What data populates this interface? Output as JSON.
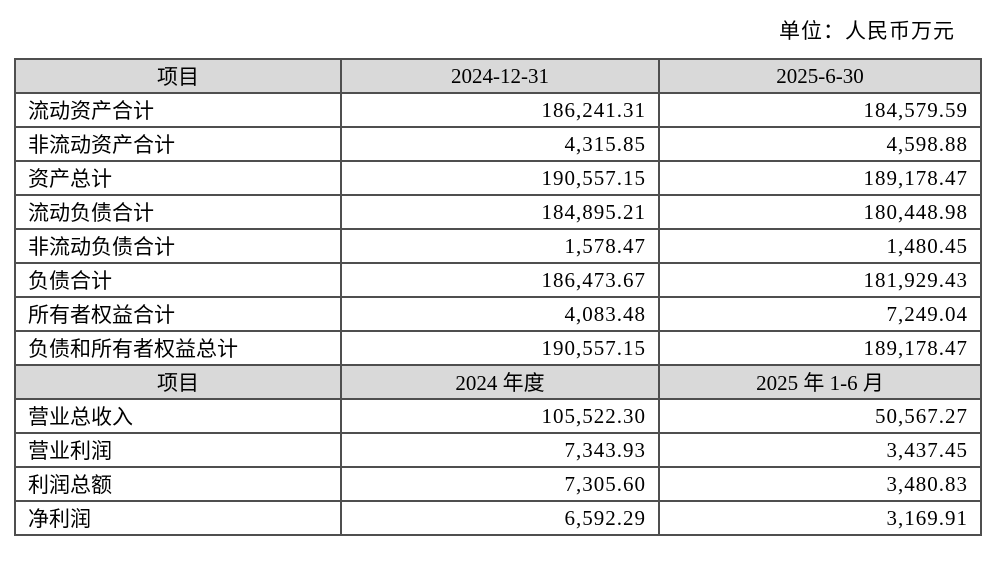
{
  "unit_note": "单位：人民币万元",
  "colors": {
    "header_bg": "#d9d9d9",
    "border": "#4f4f4f",
    "text": "#000000"
  },
  "balance_sheet": {
    "headers": [
      "项目",
      "2024-12-31",
      "2025-6-30"
    ],
    "rows": [
      {
        "item": "流动资产合计",
        "values": [
          "186,241.31",
          "184,579.59"
        ]
      },
      {
        "item": "非流动资产合计",
        "values": [
          "4,315.85",
          "4,598.88"
        ]
      },
      {
        "item": "资产总计",
        "values": [
          "190,557.15",
          "189,178.47"
        ]
      },
      {
        "item": "流动负债合计",
        "values": [
          "184,895.21",
          "180,448.98"
        ]
      },
      {
        "item": "非流动负债合计",
        "values": [
          "1,578.47",
          "1,480.45"
        ]
      },
      {
        "item": "负债合计",
        "values": [
          "186,473.67",
          "181,929.43"
        ]
      },
      {
        "item": "所有者权益合计",
        "values": [
          "4,083.48",
          "7,249.04"
        ]
      },
      {
        "item": "负债和所有者权益总计",
        "values": [
          "190,557.15",
          "189,178.47"
        ]
      }
    ]
  },
  "income_statement": {
    "headers": [
      "项目",
      "2024 年度",
      "2025 年 1-6 月"
    ],
    "rows": [
      {
        "item": "营业总收入",
        "values": [
          "105,522.30",
          "50,567.27"
        ]
      },
      {
        "item": "营业利润",
        "values": [
          "7,343.93",
          "3,437.45"
        ]
      },
      {
        "item": "利润总额",
        "values": [
          "7,305.60",
          "3,480.83"
        ]
      },
      {
        "item": "净利润",
        "values": [
          "6,592.29",
          "3,169.91"
        ]
      }
    ]
  }
}
